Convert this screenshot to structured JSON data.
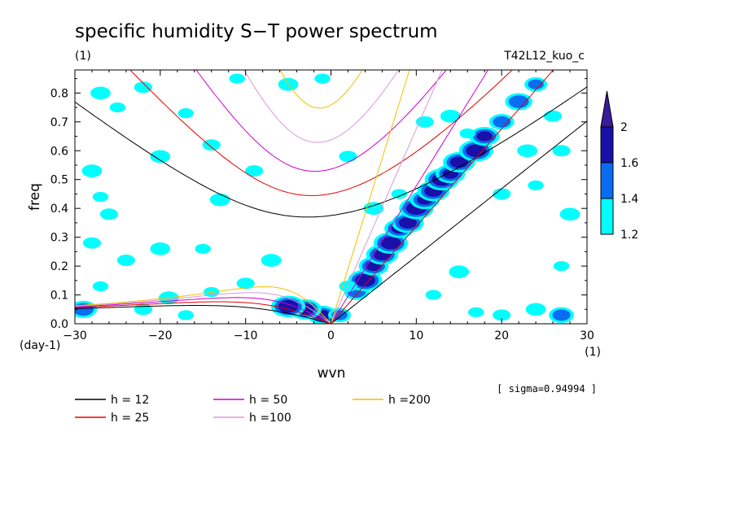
{
  "figure": {
    "title": "specific humidity S−T power spectrum",
    "units_label": "(1)",
    "run_label": "T42L12_kuo_c",
    "sigma_note": "[ sigma=0.94994 ]"
  },
  "chart_data": {
    "type": "heatmap",
    "title": "specific humidity S−T power spectrum",
    "xlabel": "wvn",
    "ylabel": "freq",
    "x_unit": "(1)",
    "y_unit": "(day-1)",
    "xlim": [
      -30,
      30
    ],
    "ylim": [
      0,
      0.88
    ],
    "x_ticks": [
      -30,
      -20,
      -10,
      0,
      10,
      20,
      30
    ],
    "x_tick_labels": [
      "−30",
      "−20",
      "−10",
      "0",
      "10",
      "20",
      "30"
    ],
    "y_ticks": [
      0,
      0.1,
      0.2,
      0.3,
      0.4,
      0.5,
      0.6,
      0.7,
      0.8
    ],
    "y_tick_labels": [
      "0.0",
      "0.1",
      "0.2",
      "0.3",
      "0.4",
      "0.5",
      "0.6",
      "0.7",
      "0.8"
    ],
    "grid": false,
    "colorbar": {
      "levels": [
        1.2,
        1.4,
        1.6,
        2
      ],
      "level_labels": [
        "1.2",
        "1.4",
        "1.6",
        "2"
      ],
      "colors": [
        "#00ffff",
        "#0a6cf2",
        "#1a0fa8",
        "#3a1a9a"
      ]
    },
    "dispersion_curves": [
      {
        "name": "h = 12",
        "h": 12,
        "color": "#000000"
      },
      {
        "name": "h = 25",
        "h": 25,
        "color": "#e00000"
      },
      {
        "name": "h = 50",
        "h": 50,
        "color": "#cc00cc"
      },
      {
        "name": "h =100",
        "h": 100,
        "color": "#d89ad8"
      },
      {
        "name": "h =200",
        "h": 200,
        "color": "#f0c000"
      }
    ],
    "spectral_peaks": [
      {
        "x": -1,
        "y": 0.03,
        "level": 3
      },
      {
        "x": -3,
        "y": 0.05,
        "level": 3
      },
      {
        "x": -5,
        "y": 0.06,
        "level": 3
      },
      {
        "x": 1,
        "y": 0.03,
        "level": 2
      },
      {
        "x": 3,
        "y": 0.11,
        "level": 2
      },
      {
        "x": 4,
        "y": 0.15,
        "level": 3
      },
      {
        "x": 5,
        "y": 0.2,
        "level": 3
      },
      {
        "x": 6,
        "y": 0.24,
        "level": 3
      },
      {
        "x": 7,
        "y": 0.28,
        "level": 3
      },
      {
        "x": 8,
        "y": 0.33,
        "level": 3
      },
      {
        "x": 9,
        "y": 0.35,
        "level": 3
      },
      {
        "x": 10,
        "y": 0.4,
        "level": 3
      },
      {
        "x": 11,
        "y": 0.43,
        "level": 3
      },
      {
        "x": 12,
        "y": 0.46,
        "level": 3
      },
      {
        "x": 13,
        "y": 0.5,
        "level": 3
      },
      {
        "x": 14,
        "y": 0.52,
        "level": 3
      },
      {
        "x": 15,
        "y": 0.56,
        "level": 3
      },
      {
        "x": 17,
        "y": 0.6,
        "level": 3
      },
      {
        "x": 18,
        "y": 0.65,
        "level": 3
      },
      {
        "x": 20,
        "y": 0.7,
        "level": 2
      },
      {
        "x": 22,
        "y": 0.77,
        "level": 2
      },
      {
        "x": 24,
        "y": 0.83,
        "level": 2
      },
      {
        "x": 27,
        "y": 0.03,
        "level": 2
      },
      {
        "x": -29,
        "y": 0.05,
        "level": 2
      },
      {
        "x": -17,
        "y": 0.03,
        "level": 1
      },
      {
        "x": -22,
        "y": 0.05,
        "level": 1
      },
      {
        "x": -27,
        "y": 0.8,
        "level": 1
      },
      {
        "x": -25,
        "y": 0.75,
        "level": 1
      },
      {
        "x": -22,
        "y": 0.82,
        "level": 1
      },
      {
        "x": -28,
        "y": 0.53,
        "level": 1
      },
      {
        "x": -27,
        "y": 0.44,
        "level": 1
      },
      {
        "x": -26,
        "y": 0.38,
        "level": 1
      },
      {
        "x": -20,
        "y": 0.58,
        "level": 1
      },
      {
        "x": -17,
        "y": 0.73,
        "level": 1
      },
      {
        "x": -14,
        "y": 0.62,
        "level": 1
      },
      {
        "x": -13,
        "y": 0.43,
        "level": 1
      },
      {
        "x": -11,
        "y": 0.85,
        "level": 1
      },
      {
        "x": -9,
        "y": 0.53,
        "level": 1
      },
      {
        "x": -5,
        "y": 0.83,
        "level": 1
      },
      {
        "x": -1,
        "y": 0.85,
        "level": 1
      },
      {
        "x": 2,
        "y": 0.58,
        "level": 1
      },
      {
        "x": 5,
        "y": 0.4,
        "level": 1
      },
      {
        "x": 8,
        "y": 0.45,
        "level": 1
      },
      {
        "x": 11,
        "y": 0.7,
        "level": 1
      },
      {
        "x": 14,
        "y": 0.72,
        "level": 1
      },
      {
        "x": 16,
        "y": 0.66,
        "level": 1
      },
      {
        "x": 20,
        "y": 0.45,
        "level": 1
      },
      {
        "x": 23,
        "y": 0.6,
        "level": 1
      },
      {
        "x": 24,
        "y": 0.48,
        "level": 1
      },
      {
        "x": 27,
        "y": 0.6,
        "level": 1
      },
      {
        "x": 28,
        "y": 0.38,
        "level": 1
      },
      {
        "x": 27,
        "y": 0.2,
        "level": 1
      },
      {
        "x": 20,
        "y": 0.03,
        "level": 1
      },
      {
        "x": 24,
        "y": 0.05,
        "level": 1
      },
      {
        "x": 17,
        "y": 0.04,
        "level": 1
      },
      {
        "x": -24,
        "y": 0.22,
        "level": 1
      },
      {
        "x": -20,
        "y": 0.26,
        "level": 1
      },
      {
        "x": -15,
        "y": 0.26,
        "level": 1
      },
      {
        "x": -10,
        "y": 0.14,
        "level": 1
      },
      {
        "x": -7,
        "y": 0.22,
        "level": 1
      },
      {
        "x": -27,
        "y": 0.13,
        "level": 1
      },
      {
        "x": -28,
        "y": 0.28,
        "level": 1
      },
      {
        "x": -19,
        "y": 0.09,
        "level": 1
      },
      {
        "x": -14,
        "y": 0.11,
        "level": 1
      },
      {
        "x": 2,
        "y": 0.13,
        "level": 1
      },
      {
        "x": 15,
        "y": 0.18,
        "level": 1
      },
      {
        "x": 12,
        "y": 0.1,
        "level": 1
      },
      {
        "x": 26,
        "y": 0.72,
        "level": 1
      }
    ]
  }
}
